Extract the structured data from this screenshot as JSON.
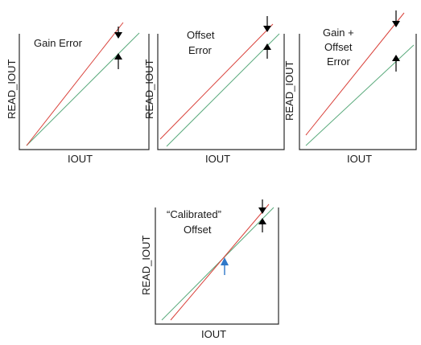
{
  "panels": [
    {
      "id": "gain-error",
      "title_lines": [
        "Gain Error"
      ],
      "y_axis_label": "READ_IOUT",
      "x_axis_label": "IOUT"
    },
    {
      "id": "offset-error",
      "title_lines": [
        "Offset",
        "Error"
      ],
      "y_axis_label": "READ_IOUT",
      "x_axis_label": "IOUT"
    },
    {
      "id": "gain-offset-error",
      "title_lines": [
        "Gain +",
        "Offset",
        "Error"
      ],
      "y_axis_label": "READ_IOUT",
      "x_axis_label": "IOUT"
    },
    {
      "id": "calibrated-offset",
      "title_lines": [
        "“Calibrated”",
        "Offset"
      ],
      "y_axis_label": "READ_IOUT",
      "x_axis_label": "IOUT"
    }
  ],
  "colors": {
    "ideal_line": "#5aaa7c",
    "error_line": "#d9413a",
    "axis": "#2a2a2a",
    "arrow": "#000000",
    "highlight_arrow": "#2f78c9"
  }
}
